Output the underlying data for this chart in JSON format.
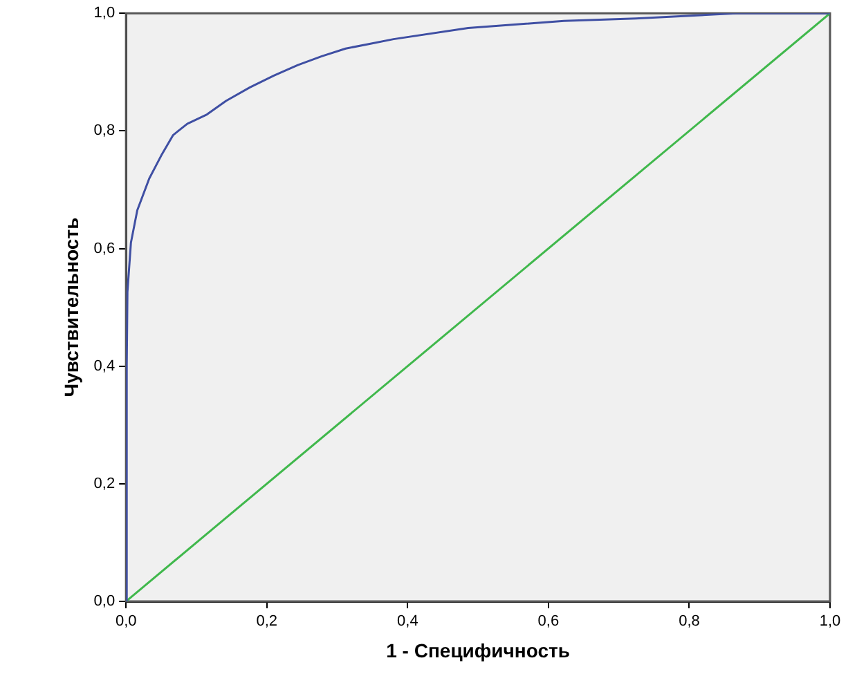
{
  "chart_data": {
    "type": "line",
    "xlabel": "1 - Специфичность",
    "ylabel": "Чувствительность",
    "xlim": [
      0,
      1
    ],
    "ylim": [
      0,
      1
    ],
    "xticks": [
      {
        "value": 0,
        "label": "0,0"
      },
      {
        "value": 0.2,
        "label": "0,2"
      },
      {
        "value": 0.4,
        "label": "0,4"
      },
      {
        "value": 0.6,
        "label": "0,6"
      },
      {
        "value": 0.8,
        "label": "0,8"
      },
      {
        "value": 1,
        "label": "1,0"
      }
    ],
    "yticks": [
      {
        "value": 0,
        "label": "0,0"
      },
      {
        "value": 0.2,
        "label": "0,2"
      },
      {
        "value": 0.4,
        "label": "0,4"
      },
      {
        "value": 0.6,
        "label": "0,6"
      },
      {
        "value": 0.8,
        "label": "0,8"
      },
      {
        "value": 1,
        "label": "1,0"
      }
    ],
    "grid": false,
    "legend": false,
    "marker": "none",
    "line_style": "solid",
    "series": [
      {
        "color": "#3f4fa3",
        "x": [
          0,
          0.001,
          0.002,
          0.007,
          0.016,
          0.033,
          0.05,
          0.067,
          0.087,
          0.115,
          0.142,
          0.176,
          0.21,
          0.244,
          0.278,
          0.312,
          0.346,
          0.38,
          0.486,
          0.622,
          0.724,
          0.867,
          1
        ],
        "values": [
          0,
          0.4,
          0.526,
          0.61,
          0.665,
          0.719,
          0.758,
          0.793,
          0.812,
          0.828,
          0.851,
          0.874,
          0.894,
          0.912,
          0.927,
          0.94,
          0.948,
          0.956,
          0.975,
          0.987,
          0.991,
          1,
          1
        ]
      },
      {
        "color": "#40b84c",
        "x": [
          0,
          1
        ],
        "values": [
          0,
          1
        ]
      }
    ]
  }
}
